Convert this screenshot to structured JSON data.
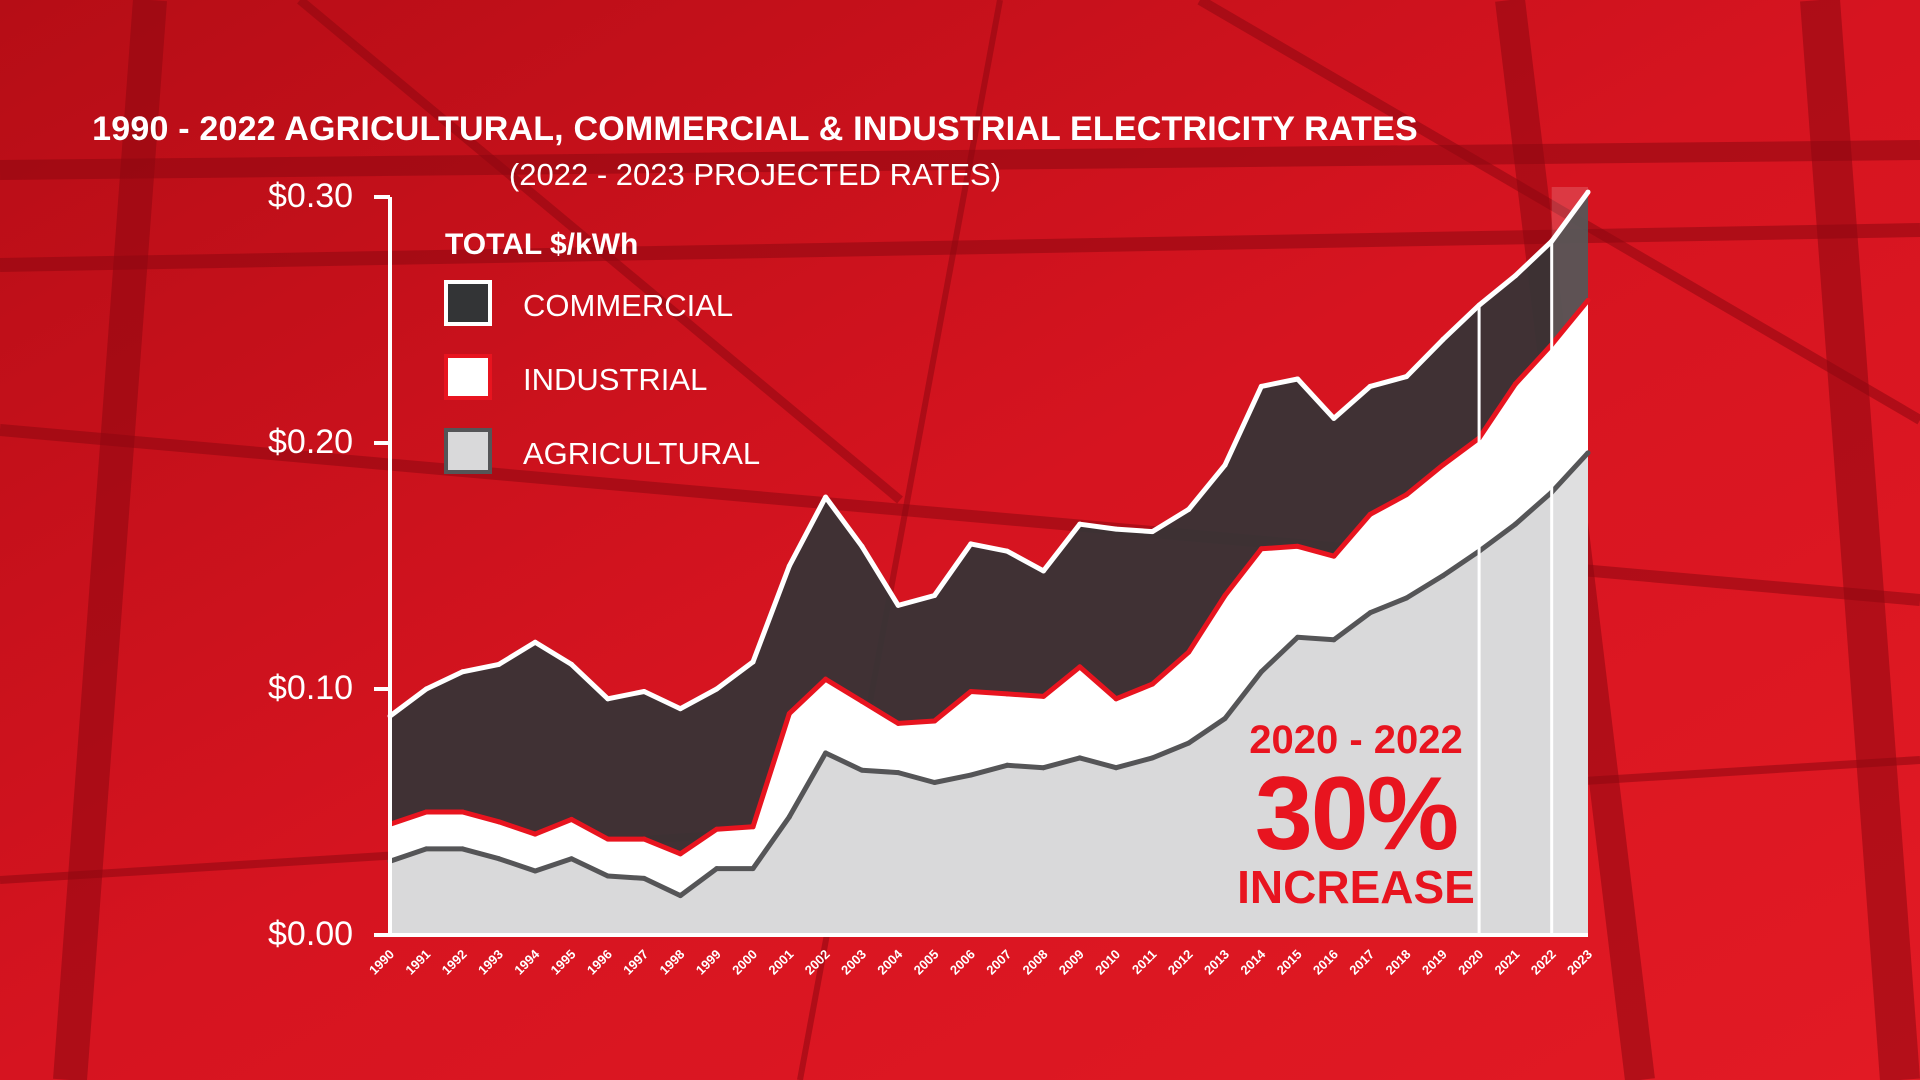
{
  "chart_data": {
    "type": "area",
    "title": "1990 - 2022 AGRICULTURAL, COMMERCIAL & INDUSTRIAL ELECTRICITY RATES",
    "subtitle": "(2022 - 2023 PROJECTED RATES)",
    "ylabel": "TOTAL $/kWh",
    "ylim": [
      0,
      0.3
    ],
    "yticks": [
      {
        "value": 0.0,
        "label": "$0.00"
      },
      {
        "value": 0.1,
        "label": "$0.10"
      },
      {
        "value": 0.2,
        "label": "$0.20"
      },
      {
        "value": 0.3,
        "label": "$0.30"
      }
    ],
    "categories": [
      "1990",
      "1991",
      "1992",
      "1993",
      "1994",
      "1995",
      "1996",
      "1997",
      "1998",
      "1999",
      "2000",
      "2001",
      "2002",
      "2003",
      "2004",
      "2005",
      "2006",
      "2007",
      "2008",
      "2009",
      "2010",
      "2011",
      "2012",
      "2013",
      "2014",
      "2015",
      "2016",
      "2017",
      "2018",
      "2019",
      "2020",
      "2021",
      "2022",
      "2023"
    ],
    "projected_from": "2022",
    "series": [
      {
        "name": "COMMERCIAL",
        "color": "#333436",
        "stroke": "#ffffff",
        "values": [
          0.089,
          0.1,
          0.107,
          0.11,
          0.119,
          0.11,
          0.096,
          0.099,
          0.092,
          0.1,
          0.111,
          0.15,
          0.178,
          0.158,
          0.134,
          0.138,
          0.159,
          0.156,
          0.148,
          0.167,
          0.165,
          0.164,
          0.173,
          0.191,
          0.223,
          0.226,
          0.21,
          0.223,
          0.227,
          0.242,
          0.256,
          0.268,
          0.282,
          0.302
        ]
      },
      {
        "name": "INDUSTRIAL",
        "color": "#ffffff",
        "stroke": "#e8141f",
        "values": [
          0.045,
          0.05,
          0.05,
          0.046,
          0.041,
          0.047,
          0.039,
          0.039,
          0.033,
          0.043,
          0.044,
          0.09,
          0.104,
          0.095,
          0.086,
          0.087,
          0.099,
          0.098,
          0.097,
          0.109,
          0.096,
          0.102,
          0.115,
          0.138,
          0.157,
          0.158,
          0.154,
          0.171,
          0.179,
          0.191,
          0.202,
          0.224,
          0.24,
          0.258
        ]
      },
      {
        "name": "AGRICULTURAL",
        "color": "#d9d9da",
        "stroke": "#555557",
        "values": [
          0.03,
          0.035,
          0.035,
          0.031,
          0.026,
          0.031,
          0.024,
          0.023,
          0.016,
          0.027,
          0.027,
          0.048,
          0.074,
          0.067,
          0.066,
          0.062,
          0.065,
          0.069,
          0.068,
          0.072,
          0.068,
          0.072,
          0.078,
          0.088,
          0.107,
          0.121,
          0.12,
          0.131,
          0.137,
          0.146,
          0.156,
          0.167,
          0.18,
          0.196
        ]
      }
    ],
    "legend": {
      "title": "TOTAL $/kWh",
      "position": "top-left"
    },
    "annotation": {
      "range": "2020 - 2022",
      "value": "30%",
      "text": "INCREASE"
    }
  }
}
